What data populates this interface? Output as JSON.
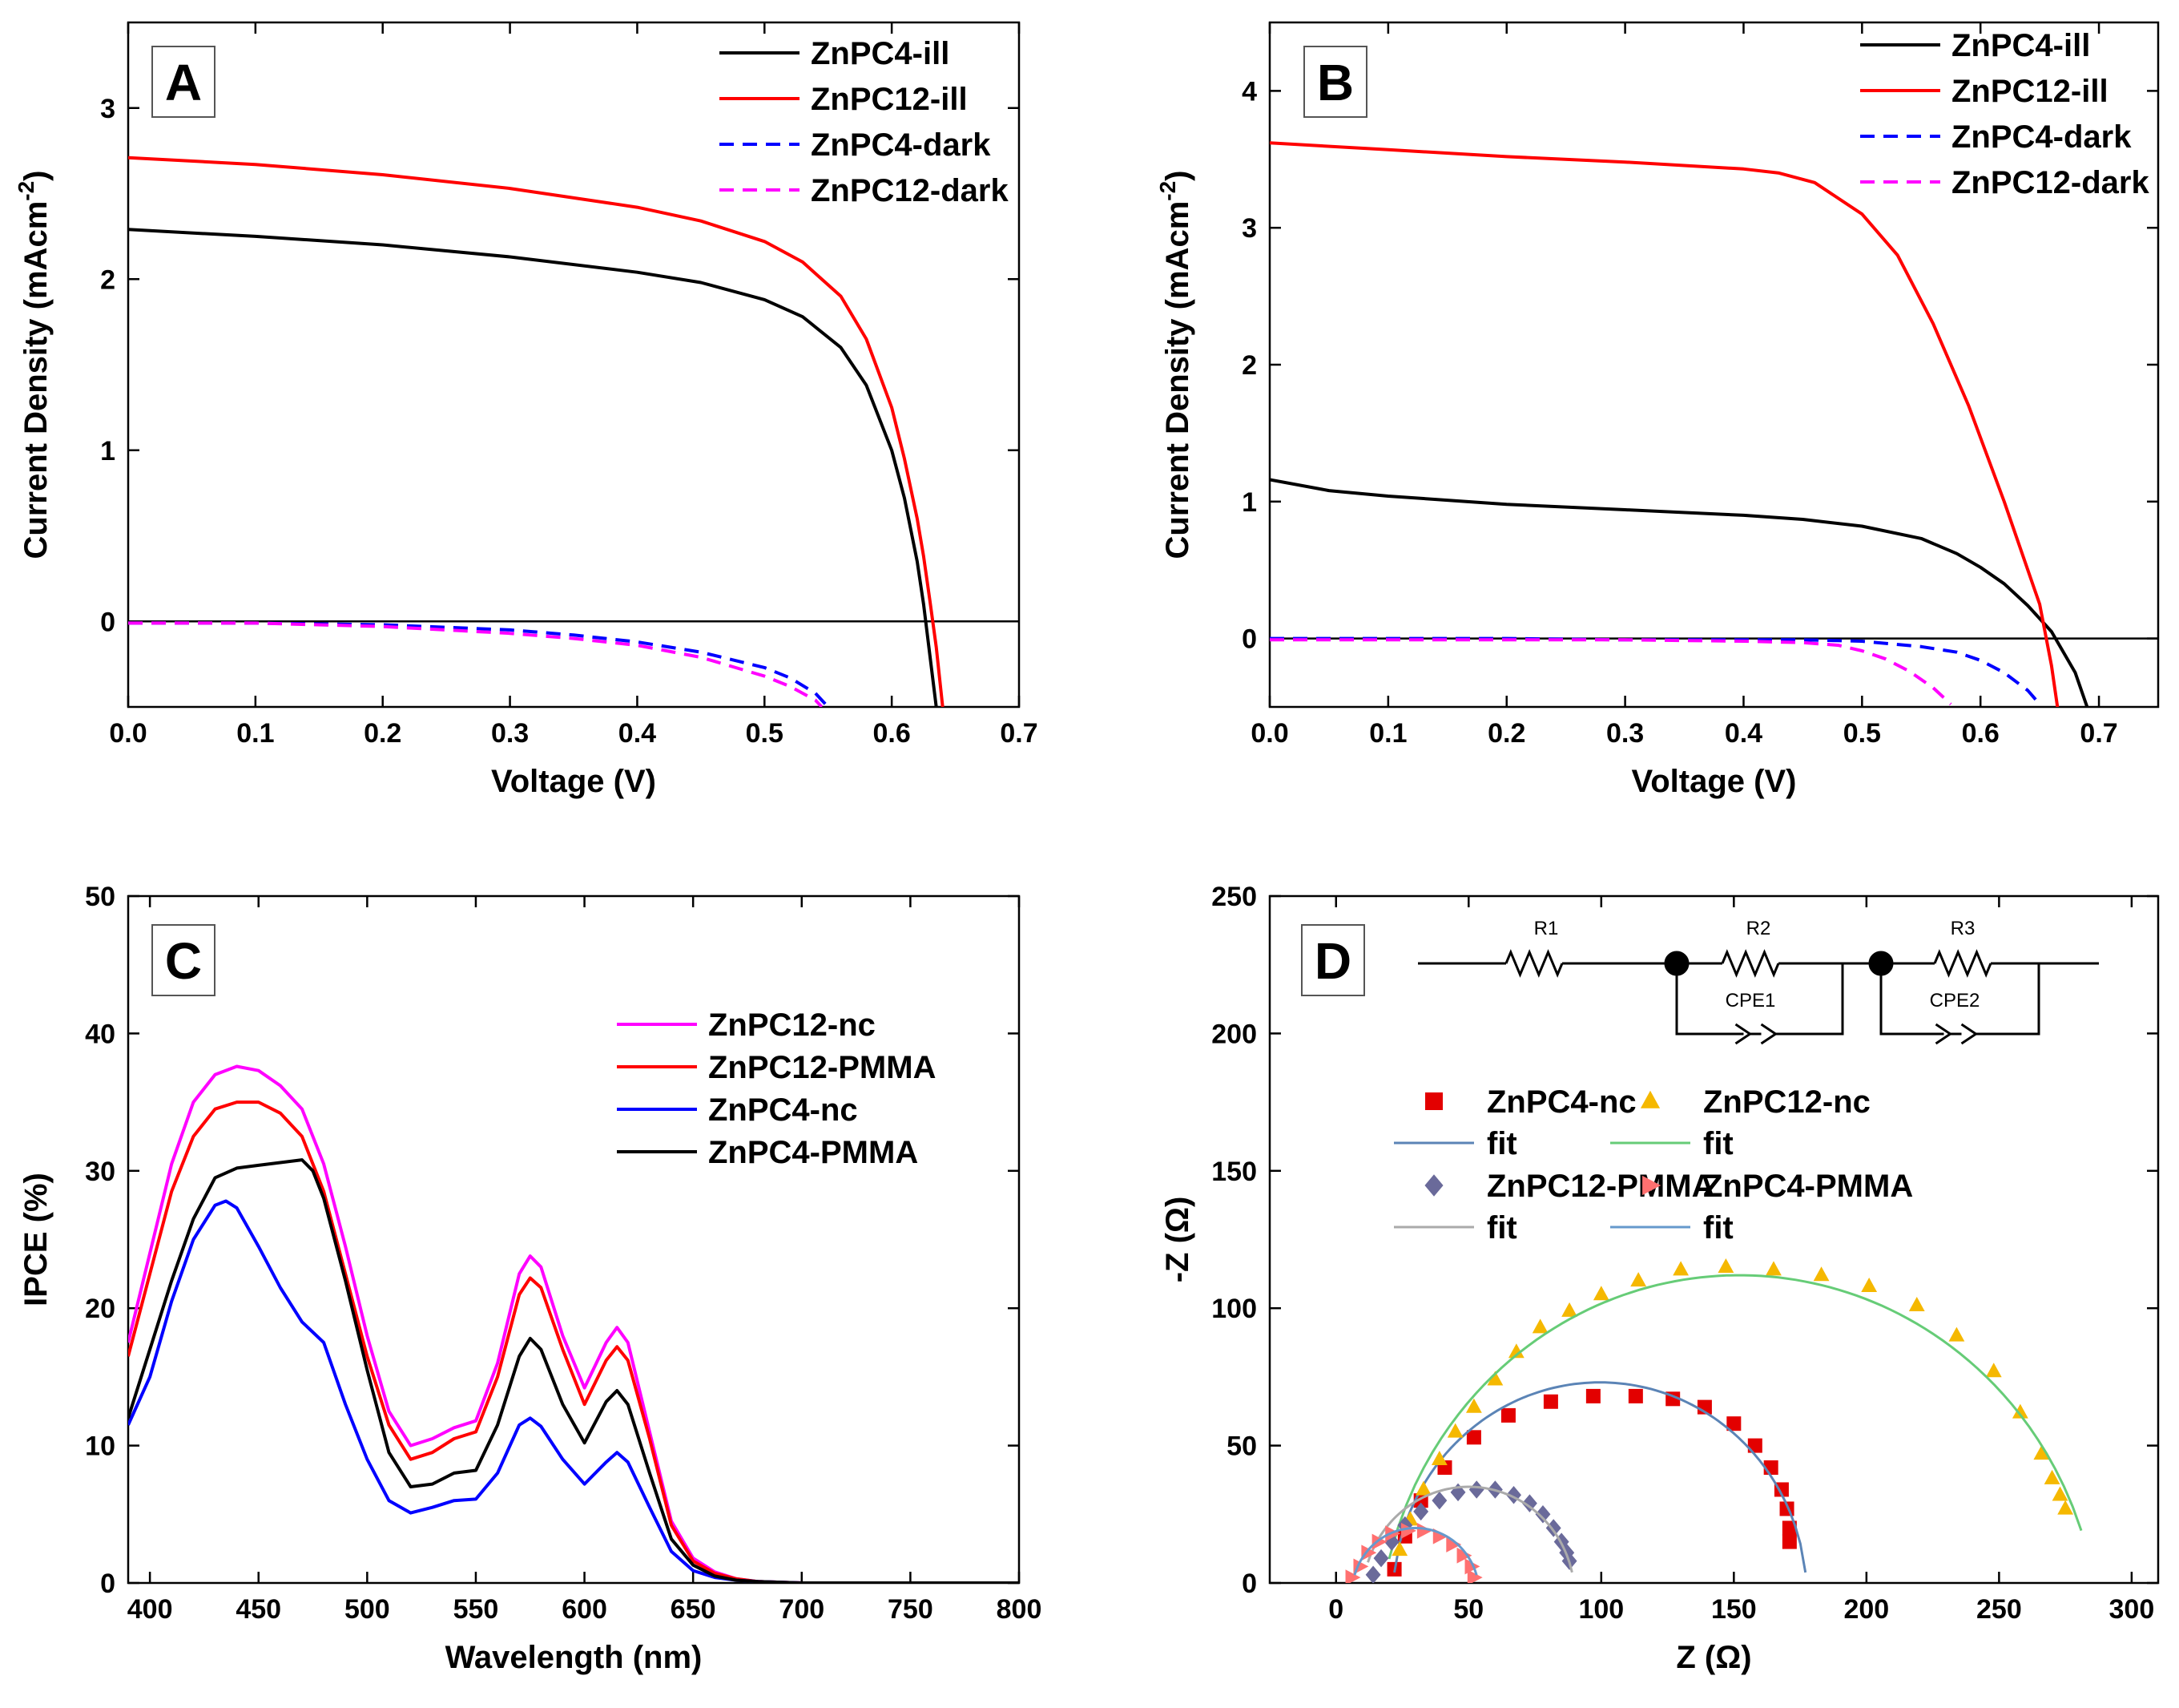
{
  "chart_data": [
    {
      "id": "A",
      "type": "line",
      "panel_label": "A",
      "xlabel": "Voltage (V)",
      "ylabel": "Current Density (mAcm",
      "ylabel_sup": "-2",
      "ylabel_close": ")",
      "xlim": [
        0,
        0.7
      ],
      "ylim": [
        -0.5,
        3.5
      ],
      "xticks": [
        "0.0",
        "0.1",
        "0.2",
        "0.3",
        "0.4",
        "0.5",
        "0.6",
        "0.7"
      ],
      "xtick_values": [
        0,
        0.1,
        0.2,
        0.3,
        0.4,
        0.5,
        0.6,
        0.7
      ],
      "yticks": [
        "0",
        "1",
        "2",
        "3"
      ],
      "ytick_values": [
        0,
        1,
        2,
        3
      ],
      "zero_line": true,
      "series": [
        {
          "name": "ZnPC4-ill",
          "color": "#000000",
          "dash": "solid",
          "x": [
            0,
            0.1,
            0.2,
            0.3,
            0.4,
            0.45,
            0.5,
            0.53,
            0.56,
            0.58,
            0.6,
            0.61,
            0.62,
            0.625,
            0.63,
            0.635
          ],
          "y": [
            2.29,
            2.25,
            2.2,
            2.13,
            2.04,
            1.98,
            1.88,
            1.78,
            1.6,
            1.38,
            1.0,
            0.72,
            0.35,
            0.1,
            -0.2,
            -0.5
          ]
        },
        {
          "name": "ZnPC12-ill",
          "color": "#ff0000",
          "dash": "solid",
          "x": [
            0,
            0.1,
            0.2,
            0.3,
            0.4,
            0.45,
            0.5,
            0.53,
            0.56,
            0.58,
            0.6,
            0.61,
            0.62,
            0.625,
            0.63,
            0.635,
            0.64
          ],
          "y": [
            2.71,
            2.67,
            2.61,
            2.53,
            2.42,
            2.34,
            2.22,
            2.1,
            1.9,
            1.65,
            1.25,
            0.95,
            0.6,
            0.38,
            0.12,
            -0.15,
            -0.5
          ]
        },
        {
          "name": "ZnPC4-dark",
          "color": "#0000ff",
          "dash": "dashed",
          "x": [
            0,
            0.1,
            0.2,
            0.3,
            0.35,
            0.4,
            0.45,
            0.5,
            0.52,
            0.54,
            0.55
          ],
          "y": [
            -0.01,
            -0.01,
            -0.02,
            -0.05,
            -0.08,
            -0.12,
            -0.18,
            -0.27,
            -0.33,
            -0.42,
            -0.5
          ]
        },
        {
          "name": "ZnPC12-dark",
          "color": "#ff00ff",
          "dash": "dashed",
          "x": [
            0,
            0.1,
            0.2,
            0.3,
            0.35,
            0.4,
            0.45,
            0.5,
            0.52,
            0.54,
            0.545
          ],
          "y": [
            -0.01,
            -0.01,
            -0.03,
            -0.07,
            -0.1,
            -0.14,
            -0.21,
            -0.32,
            -0.38,
            -0.46,
            -0.5
          ]
        }
      ]
    },
    {
      "id": "B",
      "type": "line",
      "panel_label": "B",
      "xlabel": "Voltage (V)",
      "ylabel": "Current Density (mAcm",
      "ylabel_sup": "-2",
      "ylabel_close": ")",
      "xlim": [
        0,
        0.75
      ],
      "ylim": [
        -0.5,
        4.5
      ],
      "xticks": [
        "0.0",
        "0.1",
        "0.2",
        "0.3",
        "0.4",
        "0.5",
        "0.6",
        "0.7"
      ],
      "xtick_values": [
        0,
        0.1,
        0.2,
        0.3,
        0.4,
        0.5,
        0.6,
        0.7
      ],
      "yticks": [
        "0",
        "1",
        "2",
        "3",
        "4"
      ],
      "ytick_values": [
        0,
        1,
        2,
        3,
        4
      ],
      "zero_line": true,
      "series": [
        {
          "name": "ZnPC4-ill",
          "color": "#000000",
          "dash": "solid",
          "x": [
            0,
            0.05,
            0.1,
            0.2,
            0.3,
            0.4,
            0.45,
            0.5,
            0.55,
            0.58,
            0.6,
            0.62,
            0.64,
            0.66,
            0.68,
            0.69
          ],
          "y": [
            1.16,
            1.08,
            1.04,
            0.98,
            0.94,
            0.9,
            0.87,
            0.82,
            0.73,
            0.62,
            0.52,
            0.4,
            0.24,
            0.05,
            -0.25,
            -0.5
          ]
        },
        {
          "name": "ZnPC12-ill",
          "color": "#ff0000",
          "dash": "solid",
          "x": [
            0,
            0.1,
            0.2,
            0.3,
            0.4,
            0.43,
            0.46,
            0.5,
            0.53,
            0.56,
            0.59,
            0.62,
            0.64,
            0.65,
            0.66,
            0.665
          ],
          "y": [
            3.62,
            3.57,
            3.52,
            3.48,
            3.43,
            3.4,
            3.33,
            3.1,
            2.8,
            2.3,
            1.7,
            1.0,
            0.5,
            0.25,
            -0.2,
            -0.5
          ]
        },
        {
          "name": "ZnPC4-dark",
          "color": "#0000ff",
          "dash": "dashed",
          "x": [
            0,
            0.1,
            0.2,
            0.3,
            0.4,
            0.45,
            0.5,
            0.55,
            0.58,
            0.6,
            0.62,
            0.64,
            0.65
          ],
          "y": [
            0,
            0,
            0,
            -0.01,
            -0.01,
            -0.01,
            -0.02,
            -0.06,
            -0.1,
            -0.16,
            -0.25,
            -0.38,
            -0.48
          ]
        },
        {
          "name": "ZnPC12-dark",
          "color": "#ff00ff",
          "dash": "dashed",
          "x": [
            0,
            0.1,
            0.2,
            0.3,
            0.4,
            0.45,
            0.48,
            0.5,
            0.52,
            0.54,
            0.56,
            0.575
          ],
          "y": [
            -0.01,
            -0.01,
            -0.01,
            -0.01,
            -0.02,
            -0.03,
            -0.05,
            -0.09,
            -0.15,
            -0.24,
            -0.36,
            -0.48
          ]
        }
      ]
    },
    {
      "id": "C",
      "type": "line",
      "panel_label": "C",
      "xlabel": "Wavelength (nm)",
      "ylabel": "IPCE (%)",
      "xlim": [
        390,
        800
      ],
      "ylim": [
        0,
        50
      ],
      "xticks": [
        "400",
        "450",
        "500",
        "550",
        "600",
        "650",
        "700",
        "750",
        "800"
      ],
      "xtick_values": [
        400,
        450,
        500,
        550,
        600,
        650,
        700,
        750,
        800
      ],
      "yticks": [
        "0",
        "10",
        "20",
        "30",
        "40",
        "50"
      ],
      "ytick_values": [
        0,
        10,
        20,
        30,
        40,
        50
      ],
      "series": [
        {
          "name": "ZnPC12-nc",
          "color": "#ff00ff",
          "x": [
            390,
            400,
            410,
            420,
            430,
            440,
            450,
            460,
            470,
            480,
            490,
            500,
            510,
            520,
            530,
            540,
            550,
            560,
            570,
            575,
            580,
            590,
            600,
            610,
            615,
            620,
            630,
            640,
            650,
            660,
            670,
            680,
            700,
            750,
            800
          ],
          "y": [
            17.5,
            24,
            30.5,
            35,
            37,
            37.6,
            37.3,
            36.2,
            34.5,
            30.5,
            24.5,
            18,
            12.5,
            10,
            10.5,
            11.3,
            11.8,
            16,
            22.5,
            23.8,
            23,
            18,
            14.2,
            17.5,
            18.6,
            17.5,
            11,
            4.5,
            1.8,
            0.8,
            0.3,
            0.1,
            0,
            0,
            0
          ]
        },
        {
          "name": "ZnPC12-PMMA",
          "color": "#ff0000",
          "x": [
            390,
            400,
            410,
            420,
            430,
            440,
            450,
            460,
            470,
            480,
            490,
            500,
            510,
            520,
            530,
            540,
            550,
            560,
            570,
            575,
            580,
            590,
            600,
            610,
            615,
            620,
            630,
            640,
            650,
            660,
            670,
            680,
            700,
            750,
            800
          ],
          "y": [
            16.5,
            22.5,
            28.5,
            32.5,
            34.5,
            35,
            35,
            34.2,
            32.5,
            28.5,
            22.5,
            16.5,
            11.5,
            9,
            9.5,
            10.5,
            11,
            15,
            21,
            22.2,
            21.5,
            17,
            13,
            16.2,
            17.2,
            16.2,
            10.5,
            4.2,
            1.6,
            0.7,
            0.3,
            0.1,
            0,
            0,
            0
          ]
        },
        {
          "name": "ZnPC4-nc",
          "color": "#0000ff",
          "x": [
            390,
            400,
            410,
            420,
            430,
            435,
            440,
            450,
            460,
            470,
            480,
            490,
            500,
            510,
            520,
            530,
            540,
            550,
            560,
            570,
            575,
            580,
            590,
            600,
            610,
            615,
            620,
            630,
            640,
            650,
            660,
            670,
            680,
            700,
            750,
            800
          ],
          "y": [
            11.5,
            15,
            20.5,
            25,
            27.5,
            27.8,
            27.3,
            24.5,
            21.5,
            19,
            17.5,
            13,
            9,
            6,
            5.1,
            5.5,
            6,
            6.1,
            8,
            11.5,
            12,
            11.4,
            9,
            7.2,
            8.8,
            9.5,
            8.8,
            5.5,
            2.3,
            0.9,
            0.4,
            0.2,
            0.1,
            0,
            0,
            0
          ]
        },
        {
          "name": "ZnPC4-PMMA",
          "color": "#000000",
          "x": [
            390,
            400,
            410,
            420,
            430,
            440,
            450,
            460,
            470,
            475,
            480,
            490,
            500,
            510,
            520,
            530,
            540,
            550,
            560,
            570,
            575,
            580,
            590,
            600,
            610,
            615,
            620,
            630,
            640,
            650,
            660,
            670,
            680,
            700,
            750,
            800
          ],
          "y": [
            12,
            17,
            22,
            26.5,
            29.5,
            30.2,
            30.4,
            30.6,
            30.8,
            30,
            28,
            22,
            15.5,
            9.5,
            7,
            7.2,
            8,
            8.2,
            11.5,
            16.5,
            17.8,
            17,
            13,
            10.2,
            13.2,
            14,
            13,
            8,
            3.2,
            1.3,
            0.5,
            0.2,
            0.1,
            0,
            0,
            0
          ]
        }
      ]
    },
    {
      "id": "D",
      "type": "scatter",
      "panel_label": "D",
      "xlabel": "Z (Ω)",
      "ylabel": "-Z (Ω)",
      "xlim": [
        -25,
        310
      ],
      "ylim": [
        0,
        250
      ],
      "xticks": [
        "0",
        "50",
        "100",
        "150",
        "200",
        "250",
        "300"
      ],
      "xtick_values": [
        0,
        50,
        100,
        150,
        200,
        250,
        300
      ],
      "yticks": [
        "0",
        "50",
        "100",
        "150",
        "200",
        "250"
      ],
      "ytick_values": [
        0,
        50,
        100,
        150,
        200,
        250
      ],
      "series": [
        {
          "name": "ZnPC4-nc",
          "marker": "square",
          "color": "#e30000",
          "x": [
            22,
            26,
            32,
            41,
            52,
            65,
            81,
            97,
            113,
            127,
            139,
            150,
            158,
            164,
            168,
            170,
            171,
            171
          ],
          "y": [
            5,
            17,
            30,
            42,
            53,
            61,
            66,
            68,
            68,
            67,
            64,
            58,
            50,
            42,
            34,
            27,
            20,
            15
          ]
        },
        {
          "name": "fit",
          "role": "fit",
          "color": "#5b84b6",
          "center": [
            99.5,
            -5
          ],
          "radius": 78,
          "x_from": 22,
          "x_to": 177
        },
        {
          "name": "ZnPC12-nc",
          "marker": "triangle-up",
          "color": "#f5b800",
          "x": [
            24,
            28,
            33,
            39,
            45,
            52,
            60,
            68,
            77,
            88,
            100,
            114,
            130,
            147,
            165,
            183,
            201,
            219,
            234,
            248,
            258,
            266,
            270,
            273,
            275
          ],
          "y": [
            12,
            23,
            34,
            45,
            55,
            64,
            74,
            84,
            93,
            99,
            105,
            110,
            114,
            115,
            114,
            112,
            108,
            101,
            90,
            77,
            62,
            47,
            38,
            32,
            27
          ]
        },
        {
          "name": "fit",
          "role": "fit",
          "color": "#66cc77",
          "center": [
            152,
            -24
          ],
          "radius": 136,
          "x_from": 20,
          "x_to": 281
        },
        {
          "name": "ZnPC12-PMMA",
          "marker": "diamond",
          "color": "#6a6a9a",
          "x": [
            14,
            17,
            21,
            26,
            32,
            39,
            46,
            53,
            60,
            67,
            73,
            78,
            82,
            85,
            87,
            88
          ],
          "y": [
            3,
            9,
            15,
            21,
            26,
            30,
            33,
            34,
            34,
            32,
            29,
            25,
            20,
            15,
            11,
            8
          ]
        },
        {
          "name": "fit",
          "role": "fit",
          "color": "#aaaaaa",
          "center": [
            50,
            -5
          ],
          "radius": 40,
          "x_from": 12,
          "x_to": 89
        },
        {
          "name": "ZnPC4-PMMA",
          "marker": "triangle-right",
          "color": "#ff7070",
          "x": [
            6,
            9,
            12,
            16,
            21,
            27,
            33,
            39,
            44,
            48,
            51,
            52
          ],
          "y": [
            2,
            6,
            11,
            15,
            18,
            19,
            19,
            17,
            14,
            10,
            6,
            2
          ]
        },
        {
          "name": "fit",
          "role": "fit",
          "color": "#6699cc",
          "center": [
            30,
            -4
          ],
          "radius": 24,
          "x_from": 7,
          "x_to": 53
        }
      ]
    }
  ],
  "circuit": {
    "labels": [
      "R1",
      "R2",
      "R3",
      "CPE1",
      "CPE2"
    ]
  }
}
